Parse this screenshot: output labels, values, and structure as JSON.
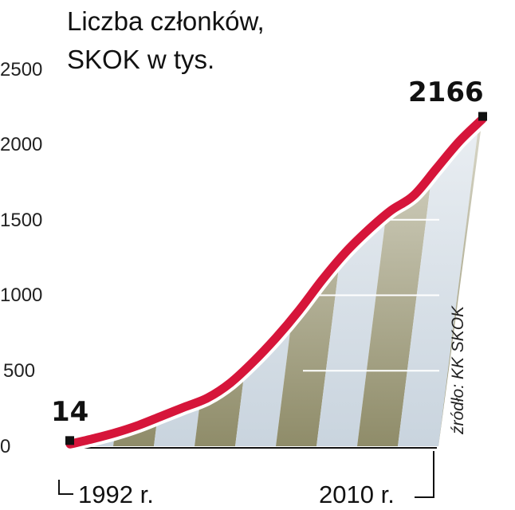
{
  "chart_data": {
    "type": "area",
    "title": "Liczba członków,",
    "subtitle": "SKOK w tys.",
    "source": "źródło: KK SKOK",
    "x_start_label": "1992 r.",
    "x_end_label": "2010 r.",
    "ylim": [
      0,
      2500
    ],
    "yticks": [
      "0",
      "500",
      "1000",
      "1500",
      "2000",
      "2500"
    ],
    "start_value_label": "14",
    "end_value_label": "2166",
    "series": [
      {
        "x": [
          1992,
          1993,
          1994,
          1995,
          1996,
          1997,
          1998,
          1999,
          2000,
          2001,
          2002,
          2003,
          2004,
          2005,
          2006,
          2007,
          2008,
          2009,
          2010
        ],
        "values": [
          14,
          50,
          90,
          140,
          200,
          260,
          320,
          420,
          560,
          720,
          900,
          1100,
          1280,
          1430,
          1560,
          1660,
          1840,
          2020,
          2166
        ]
      }
    ],
    "colors": {
      "line": "#d6153a",
      "line_outline": "#ffffff",
      "band_dark": "#8f8c69",
      "band_light": "#d8e1e8",
      "marker": "#111111"
    }
  }
}
